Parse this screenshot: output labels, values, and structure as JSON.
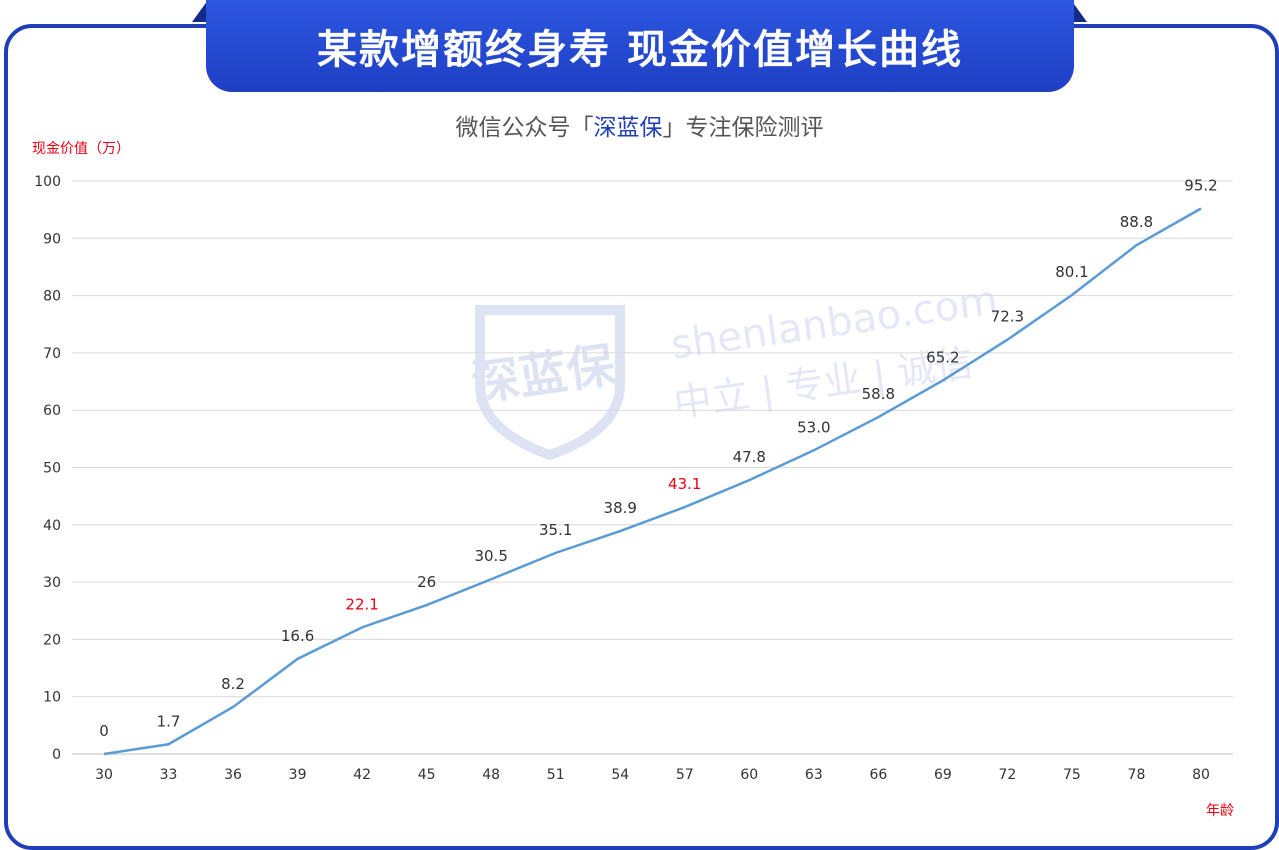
{
  "header": {
    "title": "某款增额终身寿 现金价值增长曲线",
    "subtitle_prefix": "微信公众号「",
    "subtitle_brand": "深蓝保",
    "subtitle_suffix": "」专注保险测评"
  },
  "watermark": {
    "logo_text": "深蓝保",
    "site": "shenlanbao.com",
    "slogan": "中立 | 专业 | 诚信"
  },
  "colors": {
    "frame": "#1f3fb8",
    "title_bg": "#2448d6",
    "line": "#5b9bd5",
    "highlight": "#e60012",
    "grid": "#d9d9d9",
    "text": "#333333"
  },
  "chart_data": {
    "type": "line",
    "ylabel": "现金价值（万）",
    "xlabel": "年龄",
    "x": [
      30,
      33,
      36,
      39,
      42,
      45,
      48,
      51,
      54,
      57,
      60,
      63,
      66,
      69,
      72,
      75,
      78,
      80
    ],
    "series": [
      {
        "values": [
          0,
          1.7,
          8.2,
          16.6,
          22.1,
          26,
          30.5,
          35.1,
          38.9,
          43.1,
          47.8,
          53.0,
          58.8,
          65.2,
          72.3,
          80.1,
          88.8,
          95.2
        ]
      }
    ],
    "data_labels": [
      "0",
      "1.7",
      "8.2",
      "16.6",
      "22.1",
      "26",
      "30.5",
      "35.1",
      "38.9",
      "43.1",
      "47.8",
      "53.0",
      "58.8",
      "65.2",
      "72.3",
      "80.1",
      "88.8",
      "95.2"
    ],
    "highlighted_labels": [
      "22.1",
      "43.1"
    ],
    "y_ticks": [
      "0",
      "10",
      "20",
      "30",
      "40",
      "50",
      "60",
      "70",
      "80",
      "90",
      "100"
    ],
    "ylim": [
      0,
      100
    ],
    "grid": true,
    "legend": "none"
  }
}
